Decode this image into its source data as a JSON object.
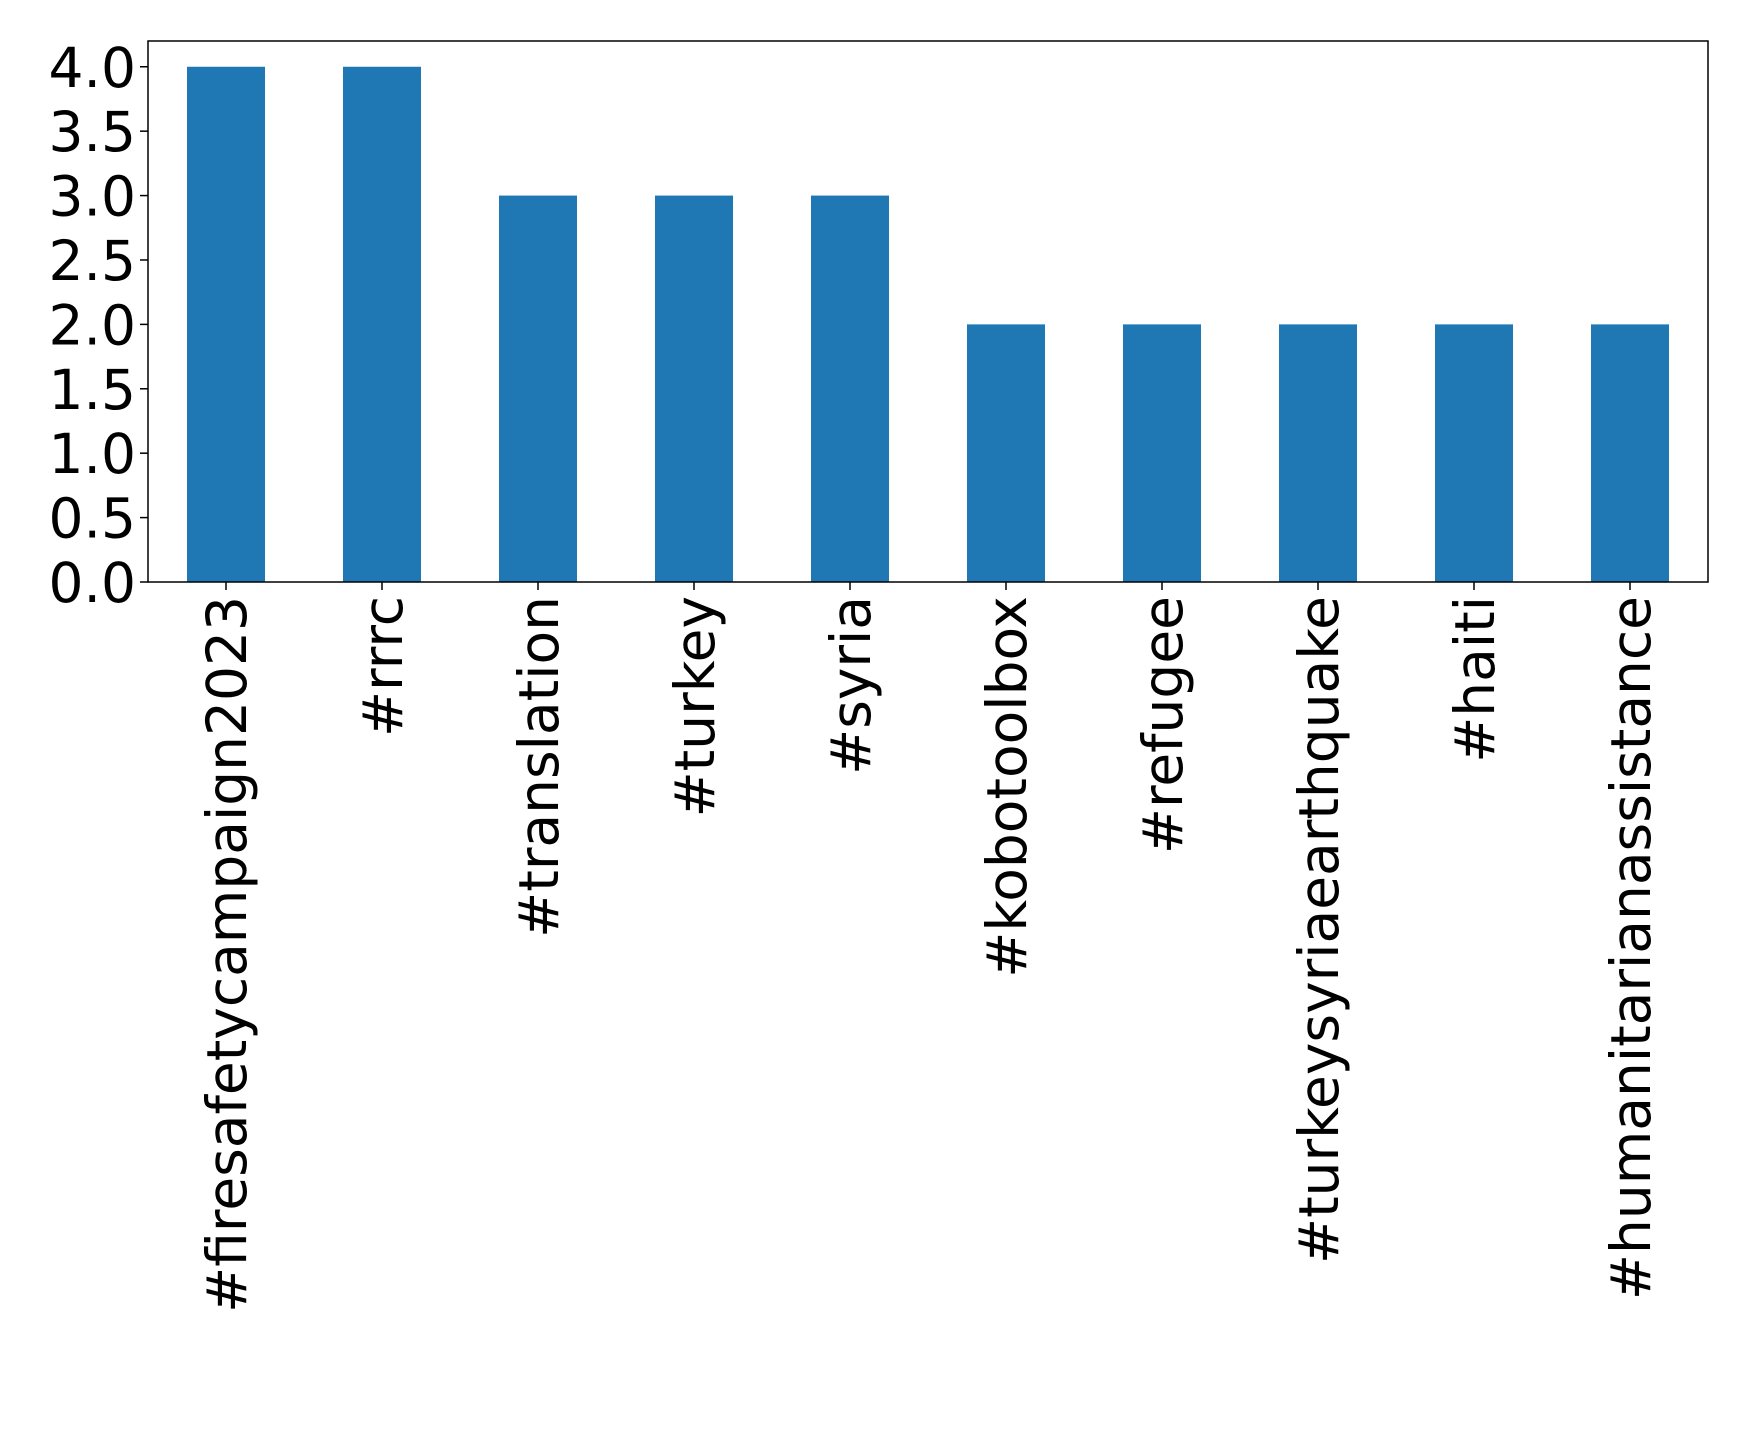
{
  "chart_data": {
    "type": "bar",
    "categories": [
      "#firesafetycampaign2023",
      "#rrrc",
      "#translation",
      "#turkey",
      "#syria",
      "#kobotoolbox",
      "#refugee",
      "#turkeysyriaearthquake",
      "#haiti",
      "#humanitarianassistance"
    ],
    "values": [
      4,
      4,
      3,
      3,
      3,
      2,
      2,
      2,
      2,
      2
    ],
    "color": "#1f77b4",
    "ylim": [
      0,
      4.2
    ],
    "yticks": [
      {
        "value": 0,
        "label": "0.0"
      },
      {
        "value": 0.5,
        "label": "0.5"
      },
      {
        "value": 1,
        "label": "1.0"
      },
      {
        "value": 1.5,
        "label": "1.5"
      },
      {
        "value": 2,
        "label": "2.0"
      },
      {
        "value": 2.5,
        "label": "2.5"
      },
      {
        "value": 3,
        "label": "3.0"
      },
      {
        "value": 3.5,
        "label": "3.5"
      },
      {
        "value": 4,
        "label": "4.0"
      }
    ],
    "grid": false
  }
}
